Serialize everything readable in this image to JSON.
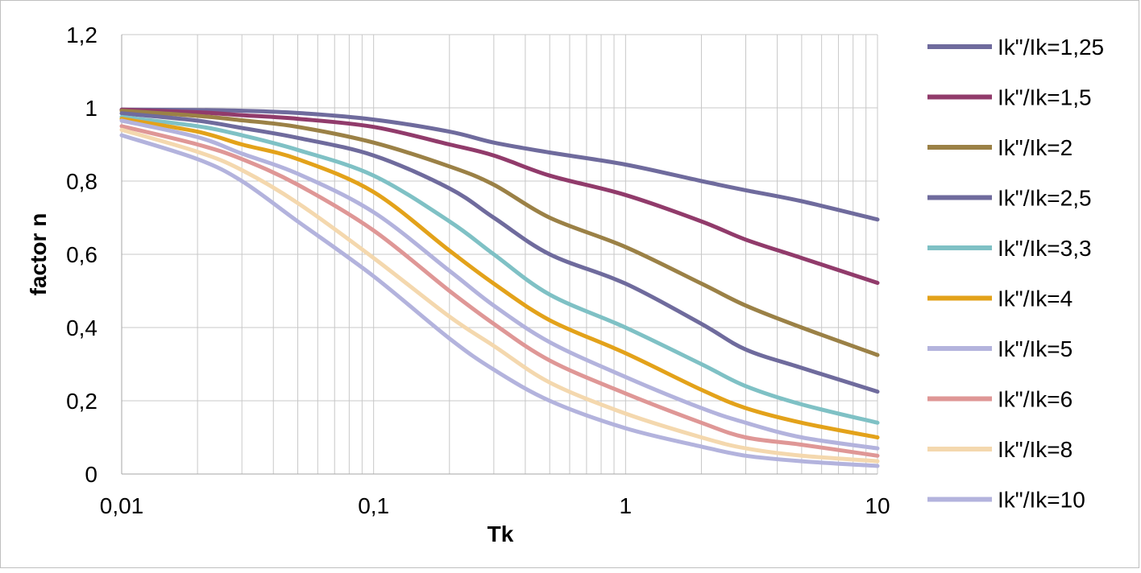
{
  "chart_data": {
    "type": "line",
    "title": "",
    "xlabel": "Tk",
    "ylabel": "factor n",
    "x_scale": "log",
    "xlim": [
      0.01,
      10
    ],
    "ylim": [
      0,
      1.2
    ],
    "x_ticks": [
      0.01,
      0.1,
      1,
      10
    ],
    "x_tick_labels": [
      "0,01",
      "0,1",
      "1",
      "10"
    ],
    "y_ticks": [
      0,
      0.2,
      0.4,
      0.6,
      0.8,
      1,
      1.2
    ],
    "y_tick_labels": [
      "0",
      "0,2",
      "0,4",
      "0,6",
      "0,8",
      "1",
      "1,2"
    ],
    "grid": true,
    "legend_position": "right",
    "x": [
      0.01,
      0.02,
      0.03,
      0.05,
      0.1,
      0.2,
      0.3,
      0.5,
      1,
      2,
      3,
      5,
      10
    ],
    "series": [
      {
        "name": "Ik\"/Ik=1,25",
        "color": "#6f6b9d",
        "values": [
          0.995,
          0.994,
          0.992,
          0.986,
          0.968,
          0.935,
          0.905,
          0.878,
          0.845,
          0.8,
          0.775,
          0.745,
          0.695
        ]
      },
      {
        "name": "Ik\"/Ik=1,5",
        "color": "#913b6b",
        "values": [
          0.995,
          0.988,
          0.98,
          0.97,
          0.948,
          0.9,
          0.87,
          0.815,
          0.762,
          0.69,
          0.64,
          0.59,
          0.522
        ]
      },
      {
        "name": "Ik\"/Ik=2",
        "color": "#9b8146",
        "values": [
          0.992,
          0.978,
          0.966,
          0.948,
          0.905,
          0.84,
          0.79,
          0.7,
          0.62,
          0.52,
          0.46,
          0.4,
          0.325
        ]
      },
      {
        "name": "Ik\"/Ik=2,5",
        "color": "#6f6b9d",
        "values": [
          0.985,
          0.965,
          0.945,
          0.918,
          0.87,
          0.78,
          0.7,
          0.6,
          0.52,
          0.41,
          0.34,
          0.29,
          0.225
        ]
      },
      {
        "name": "Ik\"/Ik=3,3",
        "color": "#7fc1c5",
        "values": [
          0.975,
          0.95,
          0.925,
          0.885,
          0.815,
          0.69,
          0.6,
          0.49,
          0.4,
          0.3,
          0.24,
          0.19,
          0.14
        ]
      },
      {
        "name": "Ik\"/Ik=4",
        "color": "#e3a21a",
        "values": [
          0.97,
          0.935,
          0.9,
          0.86,
          0.77,
          0.61,
          0.52,
          0.42,
          0.33,
          0.23,
          0.18,
          0.14,
          0.1
        ]
      },
      {
        "name": "Ik\"/Ik=5",
        "color": "#b3b3dd",
        "values": [
          0.965,
          0.92,
          0.875,
          0.82,
          0.715,
          0.555,
          0.46,
          0.36,
          0.265,
          0.18,
          0.14,
          0.1,
          0.07
        ]
      },
      {
        "name": "Ik\"/Ik=6",
        "color": "#df9796",
        "values": [
          0.95,
          0.9,
          0.86,
          0.79,
          0.665,
          0.5,
          0.41,
          0.31,
          0.22,
          0.14,
          0.1,
          0.08,
          0.05
        ]
      },
      {
        "name": "Ik\"/Ik=8",
        "color": "#f4d8ae",
        "values": [
          0.94,
          0.88,
          0.83,
          0.74,
          0.59,
          0.43,
          0.35,
          0.25,
          0.165,
          0.1,
          0.07,
          0.05,
          0.035
        ]
      },
      {
        "name": "Ik\"/Ik=10",
        "color": "#b3b3dd",
        "values": [
          0.925,
          0.86,
          0.8,
          0.69,
          0.54,
          0.37,
          0.285,
          0.2,
          0.125,
          0.075,
          0.05,
          0.035,
          0.022
        ]
      }
    ]
  }
}
